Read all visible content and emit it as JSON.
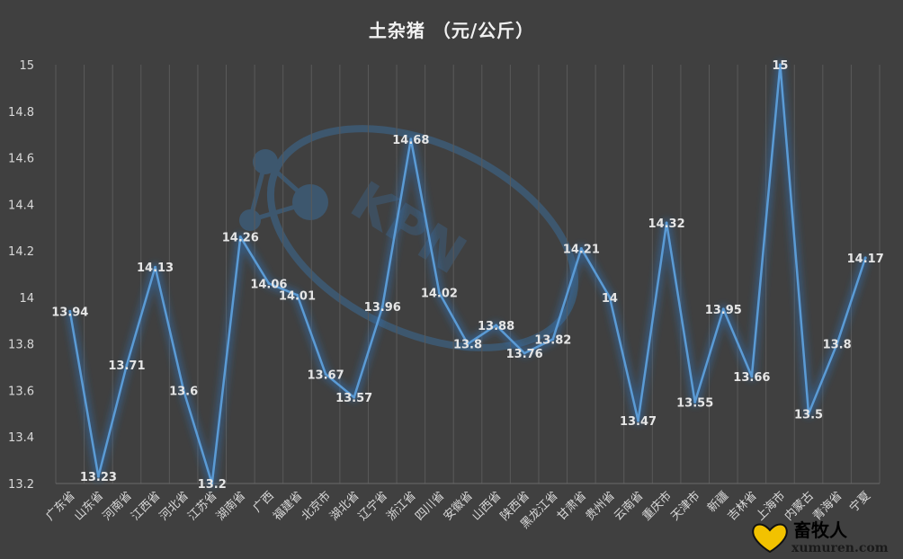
{
  "chart_data": {
    "type": "line",
    "title": "土杂猪  （元/公斤）",
    "categories": [
      "广东省",
      "山东省",
      "河南省",
      "江西省",
      "河北省",
      "江苏省",
      "湖南省",
      "广西",
      "福建省",
      "北京市",
      "湖北省",
      "辽宁省",
      "浙江省",
      "四川省",
      "安徽省",
      "山西省",
      "陕西省",
      "黑龙江省",
      "甘肃省",
      "贵州省",
      "云南省",
      "重庆市",
      "天津市",
      "新疆",
      "吉林省",
      "上海市",
      "内蒙古",
      "青海省",
      "宁夏"
    ],
    "values": [
      13.94,
      13.23,
      13.71,
      14.13,
      13.6,
      13.2,
      14.26,
      14.06,
      14.01,
      13.67,
      13.57,
      13.96,
      14.68,
      14.02,
      13.8,
      13.88,
      13.76,
      13.82,
      14.21,
      14,
      13.47,
      14.32,
      13.55,
      13.95,
      13.66,
      15,
      13.5,
      13.8,
      14.17
    ],
    "data_labels": [
      "13.94",
      "13.23",
      "13.71",
      "14.13",
      "13.6",
      "13.2",
      "14.26",
      "14.06",
      "14.01",
      "13.67",
      "13.57",
      "13.96",
      "14.68",
      "14.02",
      "13.8",
      "13.88",
      "13.76",
      "13.82",
      "14.21",
      "14",
      "13.47",
      "14.32",
      "13.55",
      "13.95",
      "13.66",
      "15",
      "13.5",
      "13.8",
      "14.17"
    ],
    "yticks": [
      "15",
      "14.8",
      "14.6",
      "14.4",
      "14.2",
      "14",
      "13.8",
      "13.6",
      "13.4",
      "13.2"
    ],
    "ylim": [
      13.2,
      15
    ],
    "xlabel": "",
    "ylabel": "",
    "grid": "vertical",
    "legend": "none",
    "line_color": "#5b9bd5"
  },
  "watermark": {
    "text": "KPN",
    "icon": "molecule-icon"
  },
  "logo": {
    "text": "畜牧人",
    "url": "xumuren.com",
    "icon": "heart-icon"
  }
}
